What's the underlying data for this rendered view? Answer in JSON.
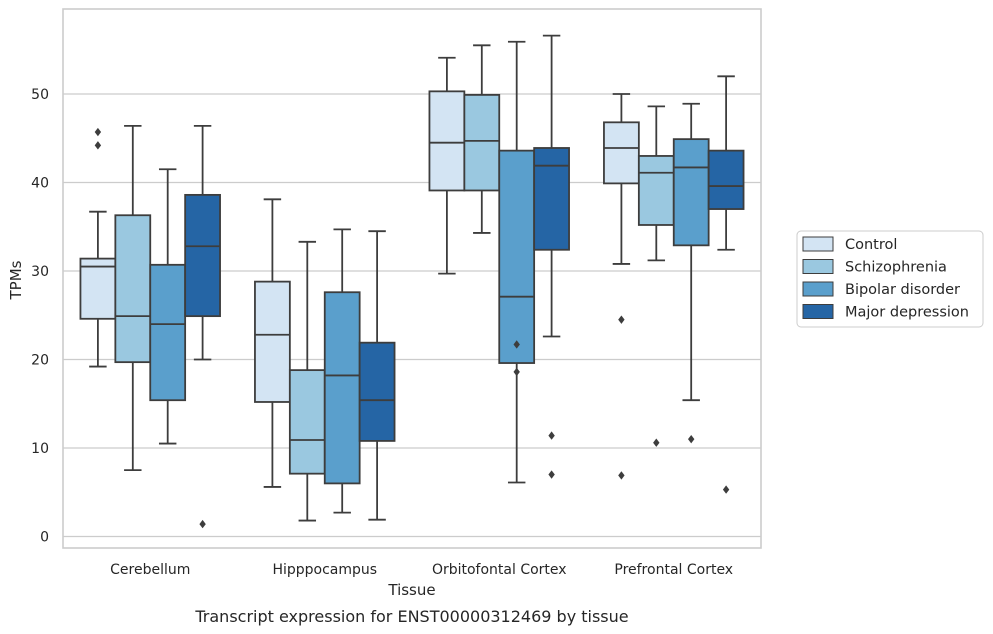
{
  "caption": "Transcript expression for ENST00000312469 by tissue",
  "chart_data": {
    "type": "box",
    "title": "",
    "xlabel": "Tissue",
    "ylabel": "TPMs",
    "ylim": [
      -1,
      59
    ],
    "yticks": [
      0,
      10,
      20,
      30,
      40,
      50
    ],
    "grid": "horizontal",
    "legend_position": "right",
    "categories": [
      "Cerebellum",
      "Hipppocampus",
      "Orbitofontal Cortex",
      "Prefrontal Cortex"
    ],
    "series": [
      {
        "name": "Control",
        "color": "#d3e4f3",
        "boxes": [
          {
            "whislo": 19.2,
            "q1": 24.6,
            "med": 30.5,
            "q3": 31.4,
            "whishi": 36.7,
            "fliers": [
              44.2,
              45.7
            ]
          },
          {
            "whislo": 5.6,
            "q1": 15.2,
            "med": 22.8,
            "q3": 28.8,
            "whishi": 38.1,
            "fliers": []
          },
          {
            "whislo": 29.7,
            "q1": 39.1,
            "med": 44.5,
            "q3": 50.3,
            "whishi": 54.1,
            "fliers": []
          },
          {
            "whislo": 30.8,
            "q1": 39.9,
            "med": 43.9,
            "q3": 46.8,
            "whishi": 50.0,
            "fliers": [
              6.9,
              24.5
            ]
          }
        ]
      },
      {
        "name": "Schizophrenia",
        "color": "#9ac8e0",
        "boxes": [
          {
            "whislo": 7.5,
            "q1": 19.7,
            "med": 24.9,
            "q3": 36.3,
            "whishi": 46.4,
            "fliers": []
          },
          {
            "whislo": 1.8,
            "q1": 7.1,
            "med": 10.9,
            "q3": 18.8,
            "whishi": 33.3,
            "fliers": []
          },
          {
            "whislo": 34.3,
            "q1": 39.1,
            "med": 44.7,
            "q3": 49.9,
            "whishi": 55.5,
            "fliers": []
          },
          {
            "whislo": 31.2,
            "q1": 35.2,
            "med": 41.1,
            "q3": 43.0,
            "whishi": 48.6,
            "fliers": [
              10.6
            ]
          }
        ]
      },
      {
        "name": "Bipolar disorder",
        "color": "#5a9fcc",
        "boxes": [
          {
            "whislo": 10.5,
            "q1": 15.4,
            "med": 24.0,
            "q3": 30.7,
            "whishi": 41.5,
            "fliers": []
          },
          {
            "whislo": 2.7,
            "q1": 6.0,
            "med": 18.2,
            "q3": 27.6,
            "whishi": 34.7,
            "fliers": []
          },
          {
            "whislo": 6.1,
            "q1": 19.6,
            "med": 27.1,
            "q3": 43.6,
            "whishi": 55.9,
            "fliers": [
              18.6,
              21.7
            ]
          },
          {
            "whislo": 15.4,
            "q1": 32.9,
            "med": 41.7,
            "q3": 44.9,
            "whishi": 48.9,
            "fliers": [
              11.0
            ]
          }
        ]
      },
      {
        "name": "Major depression",
        "color": "#2565a5",
        "boxes": [
          {
            "whislo": 20.0,
            "q1": 24.9,
            "med": 32.8,
            "q3": 38.6,
            "whishi": 46.4,
            "fliers": [
              1.4
            ]
          },
          {
            "whislo": 1.9,
            "q1": 10.8,
            "med": 15.4,
            "q3": 21.9,
            "whishi": 34.5,
            "fliers": []
          },
          {
            "whislo": 22.6,
            "q1": 32.4,
            "med": 41.9,
            "q3": 43.9,
            "whishi": 56.6,
            "fliers": [
              7.0,
              11.4
            ]
          },
          {
            "whislo": 32.4,
            "q1": 37.0,
            "med": 39.6,
            "q3": 43.6,
            "whishi": 52.0,
            "fliers": [
              5.3
            ]
          }
        ]
      }
    ]
  }
}
